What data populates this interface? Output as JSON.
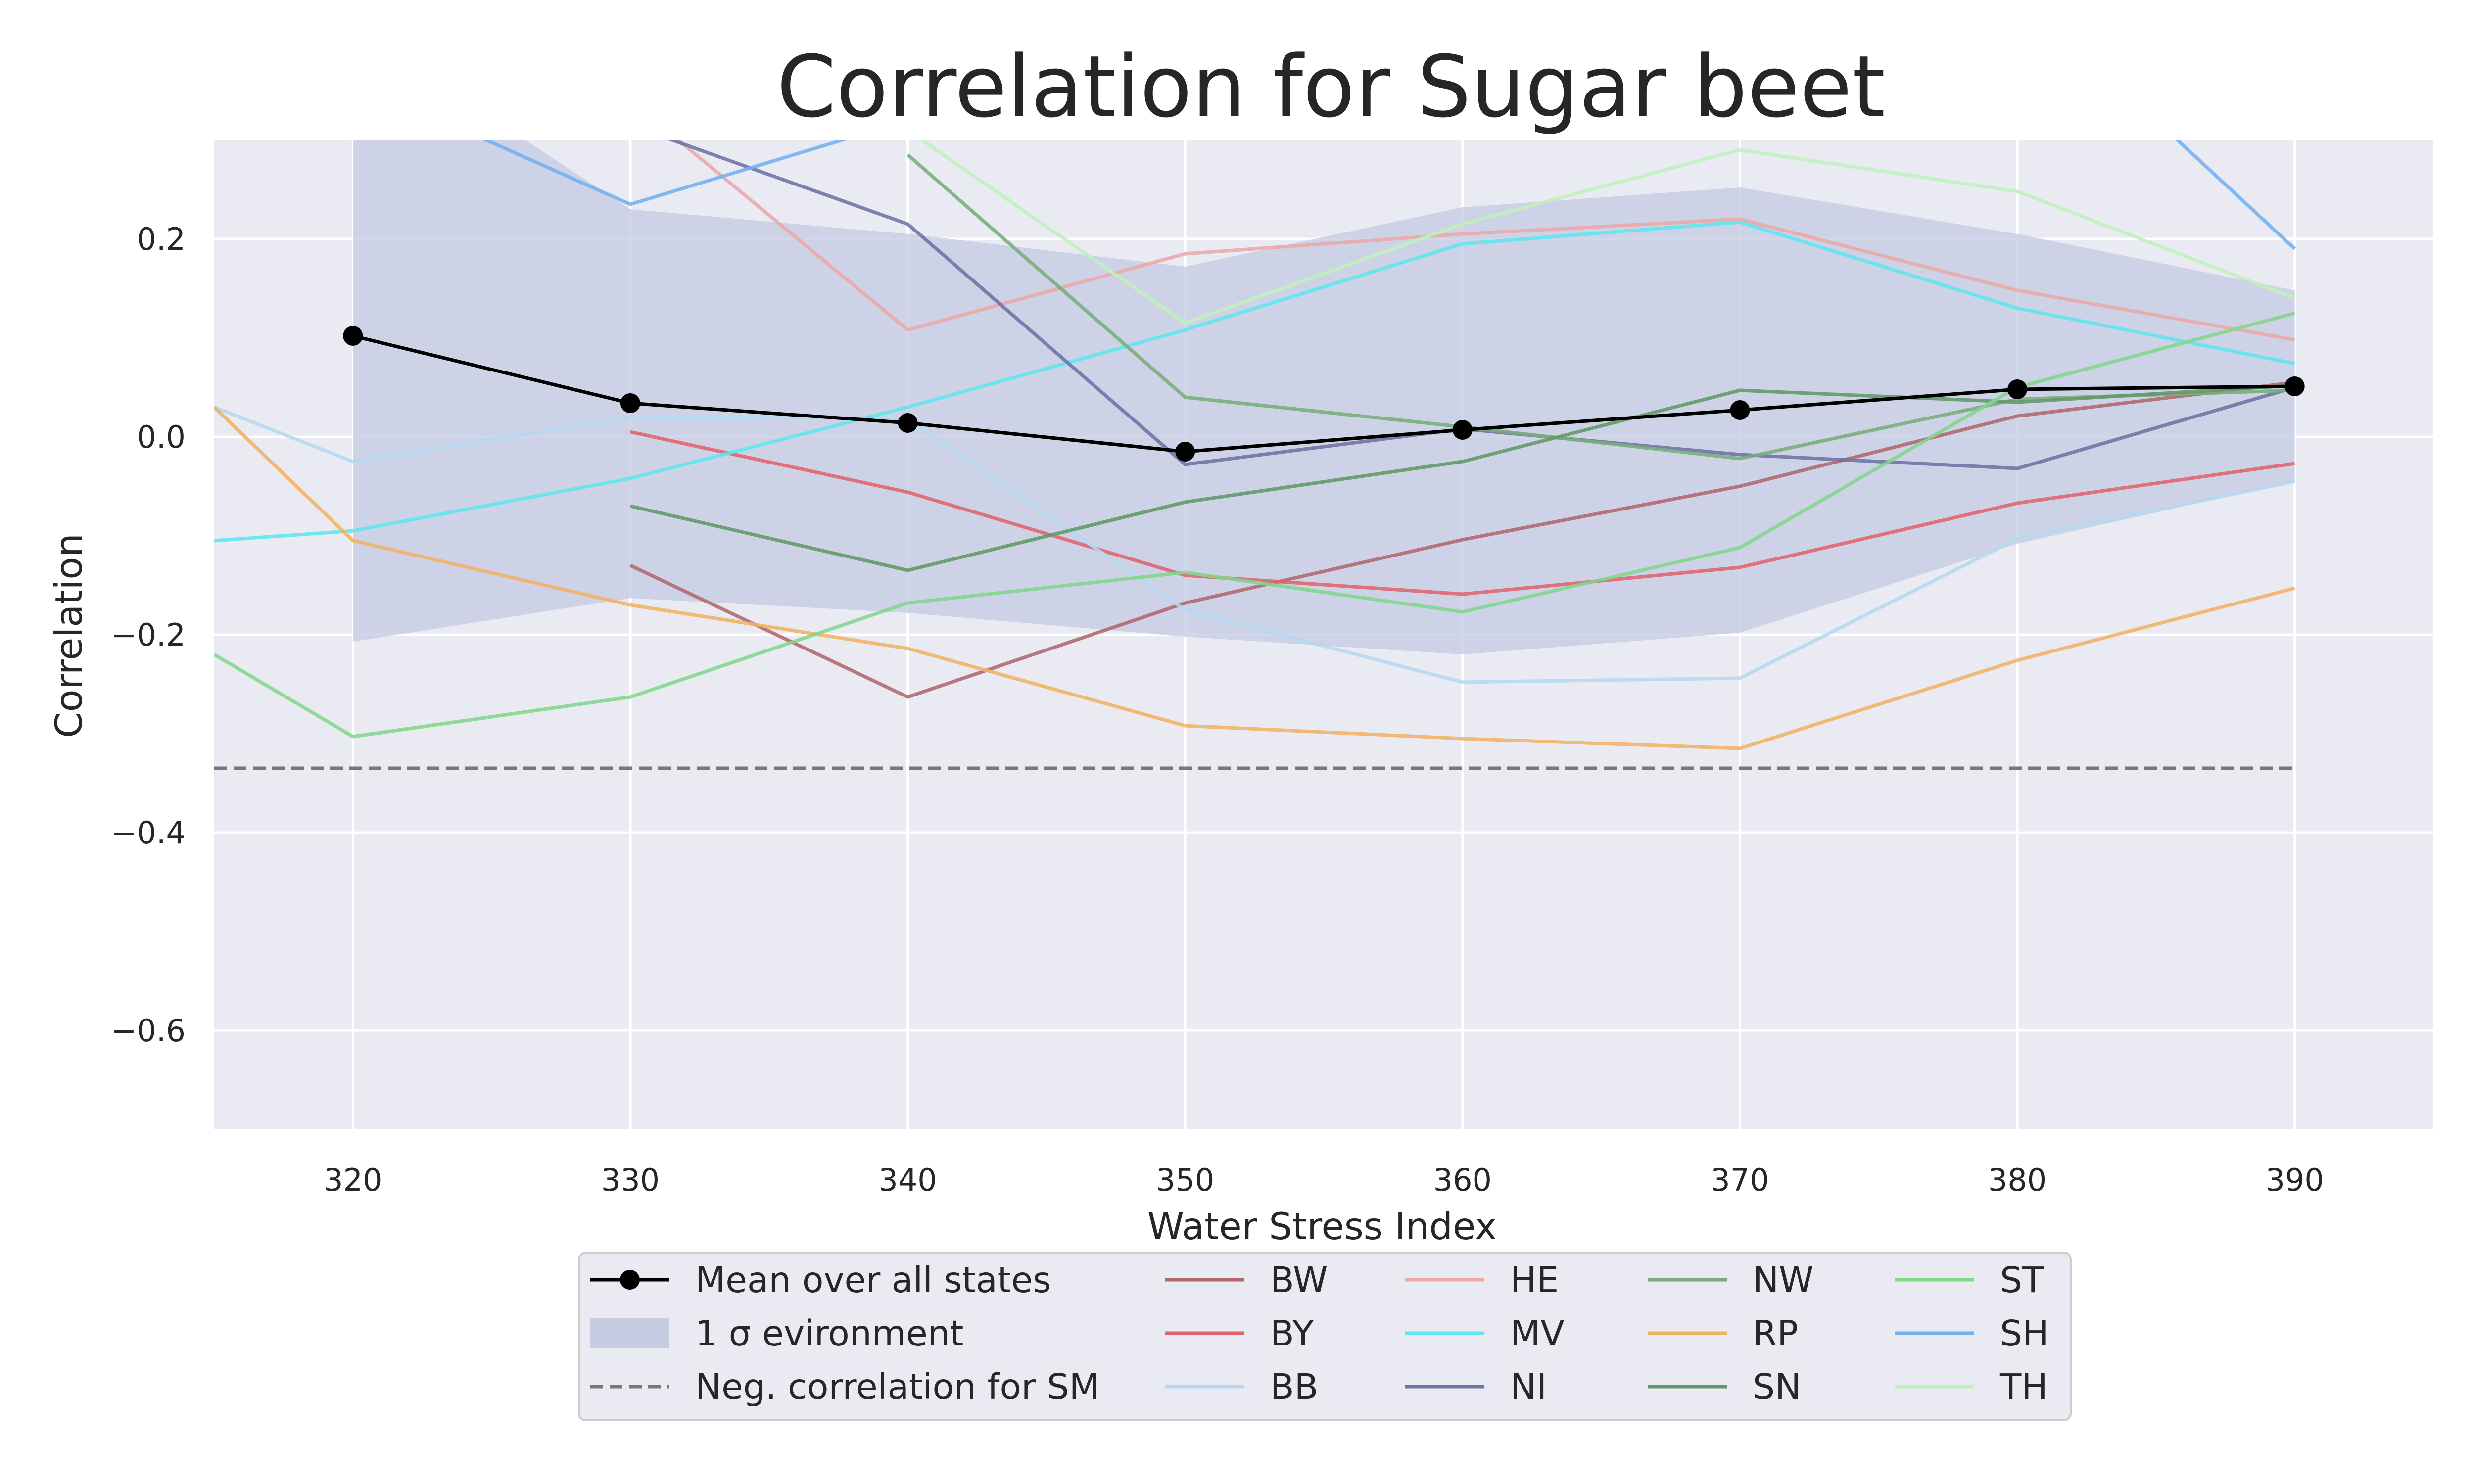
{
  "chart_data": {
    "type": "line",
    "title": "Correlation for Sugar beet",
    "xlabel": "Water Stress Index",
    "ylabel": "Correlation",
    "xlim": [
      315,
      395
    ],
    "ylim": [
      -0.7,
      0.3
    ],
    "xticks": [
      320,
      330,
      340,
      350,
      360,
      370,
      380,
      390
    ],
    "xtick_labels": [
      "320",
      "330",
      "340",
      "350",
      "360",
      "370",
      "380",
      "390"
    ],
    "yticks": [
      0.2,
      0.0,
      -0.2,
      -0.4,
      -0.6
    ],
    "ytick_labels": [
      "0.2",
      "0.0",
      "−0.2",
      "−0.4",
      "−0.6"
    ],
    "grid": true,
    "legend_position": "below",
    "background_color": "#EAEAF2",
    "x": [
      320,
      330,
      340,
      350,
      360,
      370,
      380,
      390
    ],
    "mean": {
      "name": "Mean over all states",
      "color": "#000000",
      "values": [
        0.102,
        0.034,
        0.014,
        -0.015,
        0.007,
        0.027,
        0.048,
        0.051
      ]
    },
    "band": {
      "name": "1 σ evironment",
      "color": "#C6CCE2",
      "upper": [
        0.415,
        0.23,
        0.205,
        0.172,
        0.232,
        0.252,
        0.205,
        0.148
      ],
      "lower": [
        -0.207,
        -0.163,
        -0.178,
        -0.202,
        -0.22,
        -0.198,
        -0.108,
        -0.045
      ]
    },
    "reference": {
      "name": "Neg. correlation for SM",
      "color": "#777777",
      "value": -0.335,
      "x_range": [
        315,
        390
      ]
    },
    "series": [
      {
        "name": "BW",
        "color": "#B0676D",
        "x": [
          330,
          340,
          350,
          360,
          370,
          380,
          390
        ],
        "values": [
          -0.13,
          -0.263,
          -0.168,
          -0.104,
          -0.05,
          0.021,
          0.055
        ]
      },
      {
        "name": "BY",
        "color": "#E0636D",
        "x": [
          330,
          340,
          350,
          360,
          370,
          380,
          390
        ],
        "values": [
          0.005,
          -0.056,
          -0.14,
          -0.159,
          -0.132,
          -0.067,
          -0.027
        ]
      },
      {
        "name": "BB",
        "color": "#B5D8F0",
        "x": [
          315,
          320,
          330,
          340,
          350,
          360,
          370,
          380,
          390
        ],
        "values": [
          0.03,
          -0.025,
          0.02,
          0.018,
          -0.175,
          -0.248,
          -0.244,
          -0.103,
          -0.045
        ]
      },
      {
        "name": "HE",
        "color": "#EBA9A9",
        "x": [
          330,
          340,
          350,
          360,
          370,
          380,
          390
        ],
        "values": [
          0.34,
          0.108,
          0.185,
          0.205,
          0.22,
          0.148,
          0.098
        ]
      },
      {
        "name": "MV",
        "color": "#5DE6F0",
        "x": [
          315,
          320,
          330,
          340,
          350,
          360,
          370,
          380,
          390
        ],
        "values": [
          -0.105,
          -0.095,
          -0.042,
          0.03,
          0.108,
          0.195,
          0.217,
          0.13,
          0.074
        ]
      },
      {
        "name": "NI",
        "color": "#6E72A4",
        "x": [
          320,
          330,
          340,
          350,
          360,
          370,
          380,
          390
        ],
        "values": [
          0.41,
          0.315,
          0.215,
          -0.028,
          0.008,
          -0.018,
          -0.032,
          0.05
        ]
      },
      {
        "name": "NW",
        "color": "#76AE7A",
        "x": [
          340,
          350,
          360,
          370,
          380,
          390
        ],
        "values": [
          0.285,
          0.04,
          0.01,
          -0.022,
          0.038,
          0.047
        ]
      },
      {
        "name": "RP",
        "color": "#F0B364",
        "x": [
          315,
          320,
          330,
          340,
          350,
          360,
          370,
          380,
          390
        ],
        "values": [
          0.03,
          -0.105,
          -0.17,
          -0.214,
          -0.292,
          -0.305,
          -0.315,
          -0.226,
          -0.153
        ]
      },
      {
        "name": "SN",
        "color": "#619869",
        "x": [
          330,
          340,
          350,
          360,
          370,
          380,
          390
        ],
        "values": [
          -0.07,
          -0.135,
          -0.066,
          -0.025,
          0.047,
          0.035,
          0.052
        ]
      },
      {
        "name": "ST",
        "color": "#82D68C",
        "x": [
          315,
          320,
          330,
          340,
          350,
          360,
          370,
          380,
          390
        ],
        "values": [
          -0.22,
          -0.303,
          -0.263,
          -0.168,
          -0.137,
          -0.177,
          -0.112,
          0.05,
          0.125
        ]
      },
      {
        "name": "SH",
        "color": "#72B0F0",
        "x": [
          320,
          330,
          340,
          385,
          390
        ],
        "values": [
          0.36,
          0.235,
          0.32,
          0.32,
          0.19
        ]
      },
      {
        "name": "TH",
        "color": "#BFF0BC",
        "x": [
          330,
          340,
          350,
          360,
          370,
          380,
          390
        ],
        "values": [
          0.32,
          0.31,
          0.115,
          0.215,
          0.29,
          0.248,
          0.14
        ]
      }
    ]
  }
}
